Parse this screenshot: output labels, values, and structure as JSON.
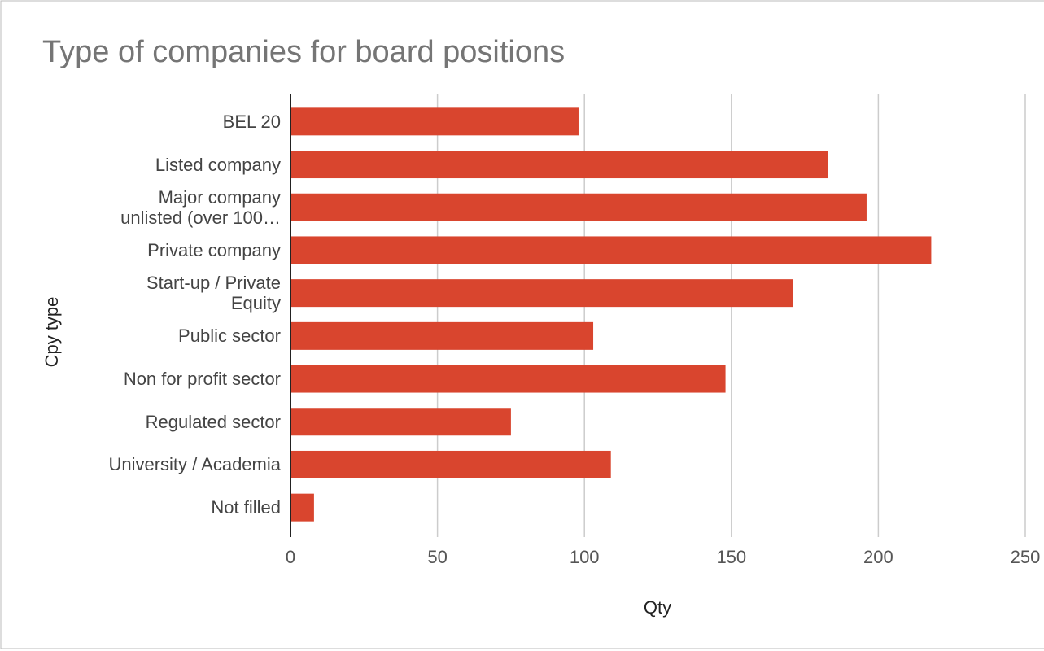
{
  "chart_data": {
    "type": "bar",
    "orientation": "horizontal",
    "title": "Type of companies for board positions",
    "x_label": "Qty",
    "y_label": "Cpy type",
    "categories": [
      "BEL 20",
      "Listed company",
      "Major company unlisted (over 100…",
      "Private company",
      "Start-up / Private Equity",
      "Public sector",
      "Non for profit sector",
      "Regulated sector",
      "University / Academia",
      "Not filled"
    ],
    "values": [
      98,
      183,
      196,
      218,
      171,
      103,
      148,
      75,
      109,
      8
    ],
    "color": "#d9452e",
    "xlim": [
      0,
      250
    ],
    "xticks": [
      0,
      50,
      100,
      150,
      200,
      250
    ],
    "grid": true
  }
}
